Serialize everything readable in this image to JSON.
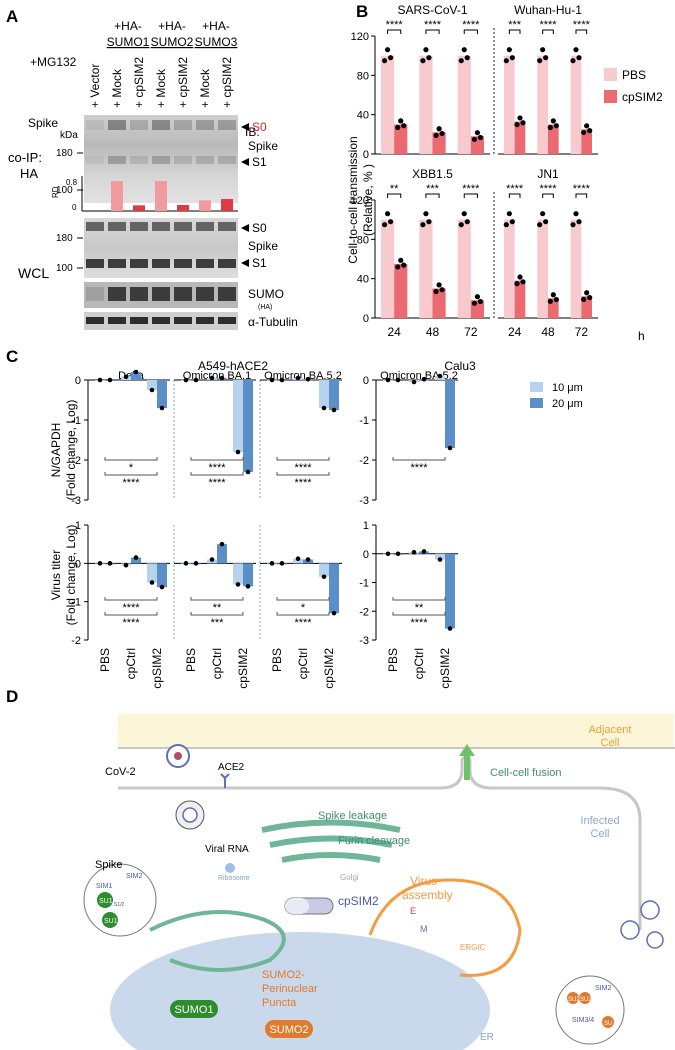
{
  "colors": {
    "pbs": "#f8c9cd",
    "cpsim2": "#ea6a72",
    "light_blue": "#b6d3ee",
    "dark_blue": "#5b8fc8",
    "rd_light": "#f19ba1",
    "rd_dark": "#e03a44",
    "cell_green": "#6fb598",
    "golgi_green": "#3f8f6a",
    "orange": "#f39c42",
    "cyto_blue": "#c9d8ea",
    "adjacent_cell": "#fbf6d7"
  },
  "panel_labels": {
    "a": "A",
    "b": "B",
    "c": "C",
    "d": "D"
  },
  "panel_a": {
    "mg132": "+MG132",
    "spike_label": "Spike",
    "ib_label": "IB:",
    "kda": "kDa",
    "lanes": [
      "+ Vector",
      "+ Mock",
      "+ cpSIM2",
      "+ Mock",
      "+ cpSIM2",
      "+ Mock",
      "+ cpSIM2"
    ],
    "groups": [
      {
        "line1": "+HA-",
        "line2": "SUMO1"
      },
      {
        "line1": "+HA-",
        "line2": "SUMO2"
      },
      {
        "line1": "+HA-",
        "line2": "SUMO3"
      }
    ],
    "coip_line1": "co-IP:",
    "coip_line2": "HA",
    "wcl": "WCL",
    "rd_axis": "RD",
    "rd_ticks": [
      "0.8",
      "0"
    ],
    "rd_values": [
      0,
      0.9,
      0.17,
      0.9,
      0.18,
      0.32,
      0.36
    ],
    "rd_max": 1.05,
    "mw_coip": [
      "180",
      "100"
    ],
    "mw_wcl": [
      "180",
      "100"
    ],
    "s0": "S0",
    "s1": "S1",
    "spike_blot": "Spike",
    "sumo_blot": "SUMO",
    "sumo_ha": "(HA)",
    "tubulin": "α-Tubulin"
  },
  "panel_b": {
    "ylabel_line1": "Cell-to-cell transmission",
    "ylabel_line2": "(Relative, % )",
    "legend": [
      "PBS",
      "cpSIM2"
    ],
    "x_unit": "h",
    "chart_data": {
      "type": "bar",
      "ylim": [
        0,
        120
      ],
      "yticks": [
        0,
        40,
        80,
        120
      ],
      "categories": [
        "24",
        "48",
        "72"
      ],
      "x_unit": "h",
      "panels": [
        {
          "title": "SARS-CoV-1",
          "pbs": [
            100,
            100,
            100
          ],
          "cpsim2": [
            30,
            22,
            18
          ],
          "sig": [
            "****",
            "****",
            "****"
          ]
        },
        {
          "title": "Wuhan-Hu-1",
          "pbs": [
            100,
            100,
            100
          ],
          "cpsim2": [
            33,
            30,
            25
          ],
          "sig": [
            "***",
            "****",
            "****"
          ]
        },
        {
          "title": "XBB1.5",
          "pbs": [
            100,
            100,
            100
          ],
          "cpsim2": [
            55,
            30,
            18
          ],
          "sig": [
            "**",
            "***",
            "****"
          ]
        },
        {
          "title": "JN1",
          "pbs": [
            100,
            100,
            100
          ],
          "cpsim2": [
            38,
            20,
            22
          ],
          "sig": [
            "****",
            "****",
            "****"
          ]
        }
      ]
    }
  },
  "panel_c": {
    "group_header": "A549-hACE2",
    "calu3_header": "Calu3",
    "legend": [
      "10 μm",
      "20 μm"
    ],
    "top_ylabel_line1": "N/GAPDH",
    "top_ylabel_line2": "(Fold change, Log)",
    "bottom_ylabel_line1": "Virus titer",
    "bottom_ylabel_line2": "(Fold change, Log)",
    "x_categories": [
      "PBS",
      "cpCtrl",
      "cpSIM2"
    ],
    "chart_data": {
      "type": "bar",
      "series": [
        "10 μm",
        "20 μm"
      ],
      "categories": [
        "PBS",
        "cpCtrl",
        "cpSIM2"
      ],
      "top": {
        "ylabel": "N/GAPDH (Fold change, Log)",
        "panels": [
          {
            "title": "Delta",
            "ymin": -3,
            "ymax": 0,
            "yticks": [
              "0",
              "-1",
              "-2",
              "-3"
            ],
            "values": [
              [
                0,
                0
              ],
              [
                0.08,
                0.2
              ],
              [
                -0.25,
                -0.7
              ]
            ],
            "sig": [
              "*",
              "****"
            ]
          },
          {
            "title": "Omicron BA.1",
            "ymin": -3,
            "ymax": 0,
            "yticks": [
              "0",
              "-1",
              "-2",
              "-3"
            ],
            "values": [
              [
                0,
                0
              ],
              [
                0.05,
                0.05
              ],
              [
                -1.8,
                -2.3
              ]
            ],
            "sig": [
              "****",
              "****"
            ]
          },
          {
            "title": "Omicron BA.5.2",
            "ymin": -3,
            "ymax": 0,
            "yticks": [
              "0",
              "-1",
              "-2",
              "-3"
            ],
            "values": [
              [
                0,
                0
              ],
              [
                0.05,
                0.02
              ],
              [
                -0.7,
                -0.75
              ]
            ],
            "sig": [
              "****",
              "****"
            ]
          },
          {
            "title": "Omicron BA.5.2",
            "ymin": -3,
            "ymax": 0,
            "yticks": [
              "0",
              "-1",
              "-2",
              "-3"
            ],
            "values": [
              [
                0,
                0
              ],
              [
                -0.05,
                0.02
              ],
              [
                0.1,
                -1.7
              ]
            ],
            "sig": [
              "****"
            ]
          }
        ]
      },
      "bottom": {
        "ylabel": "Virus titer (Fold change, Log)",
        "panels": [
          {
            "title": "Delta",
            "ymin": -2,
            "ymax": 1,
            "yticks": [
              "1",
              "0",
              "-1",
              "-2"
            ],
            "values": [
              [
                0,
                0
              ],
              [
                -0.05,
                0.15
              ],
              [
                -0.5,
                -0.62
              ]
            ],
            "sig": [
              "****",
              "****"
            ]
          },
          {
            "title": "Omicron BA.1",
            "ymin": -2,
            "ymax": 1,
            "yticks": [
              "1",
              "0",
              "-1",
              "-2"
            ],
            "values": [
              [
                0,
                0
              ],
              [
                0.1,
                0.5
              ],
              [
                -0.55,
                -0.6
              ]
            ],
            "sig": [
              "**",
              "***"
            ]
          },
          {
            "title": "Omicron BA.5.2",
            "ymin": -2,
            "ymax": 1,
            "yticks": [
              "1",
              "0",
              "-1",
              "-2"
            ],
            "values": [
              [
                0,
                0
              ],
              [
                0.12,
                0.1
              ],
              [
                -0.35,
                -1.3
              ]
            ],
            "sig": [
              "*",
              "****"
            ]
          },
          {
            "title": "Omicron BA.5.2",
            "ymin": -3,
            "ymax": 1,
            "yticks": [
              "1",
              "0",
              "-1",
              "-2",
              "-3"
            ],
            "values": [
              [
                0,
                0
              ],
              [
                0.05,
                0.08
              ],
              [
                -0.2,
                -2.6
              ]
            ],
            "sig": [
              "**",
              "****"
            ]
          }
        ]
      }
    }
  },
  "panel_d": {
    "adjacent_line1": "Adjacent",
    "adjacent_line2": "Cell",
    "infected_line1": "Infected",
    "infected_line2": "Cell",
    "cov2": "CoV-2",
    "ace2": "ACE2",
    "cell_fusion": "Cell-cell fusion",
    "spike_leakage": "Spike leakage",
    "furin": "Furin cleavage",
    "viral_rna": "Viral RNA",
    "ribosome": "Ribosome",
    "spike": "Spike",
    "golgi": "Golgi",
    "cpsim2": "cpSIM2",
    "virus_line1": "Virus",
    "virus_line2": "assembly",
    "ergic": "ERGIC",
    "e_label": "E",
    "m_label": "M",
    "sumo1": "SUMO1",
    "sumo2": "SUMO2",
    "perinuclear_line1": "SUMO2-",
    "perinuclear_line2": "Perinuclear",
    "perinuclear_line3": "Puncta",
    "er": "ER",
    "zoom_left": [
      "SIM1",
      "SIM2",
      "SU1",
      "SU1",
      "S1/2"
    ],
    "zoom_right": [
      "SIM2",
      "SIM3/4",
      "SU2",
      "SU2",
      "SU"
    ]
  }
}
